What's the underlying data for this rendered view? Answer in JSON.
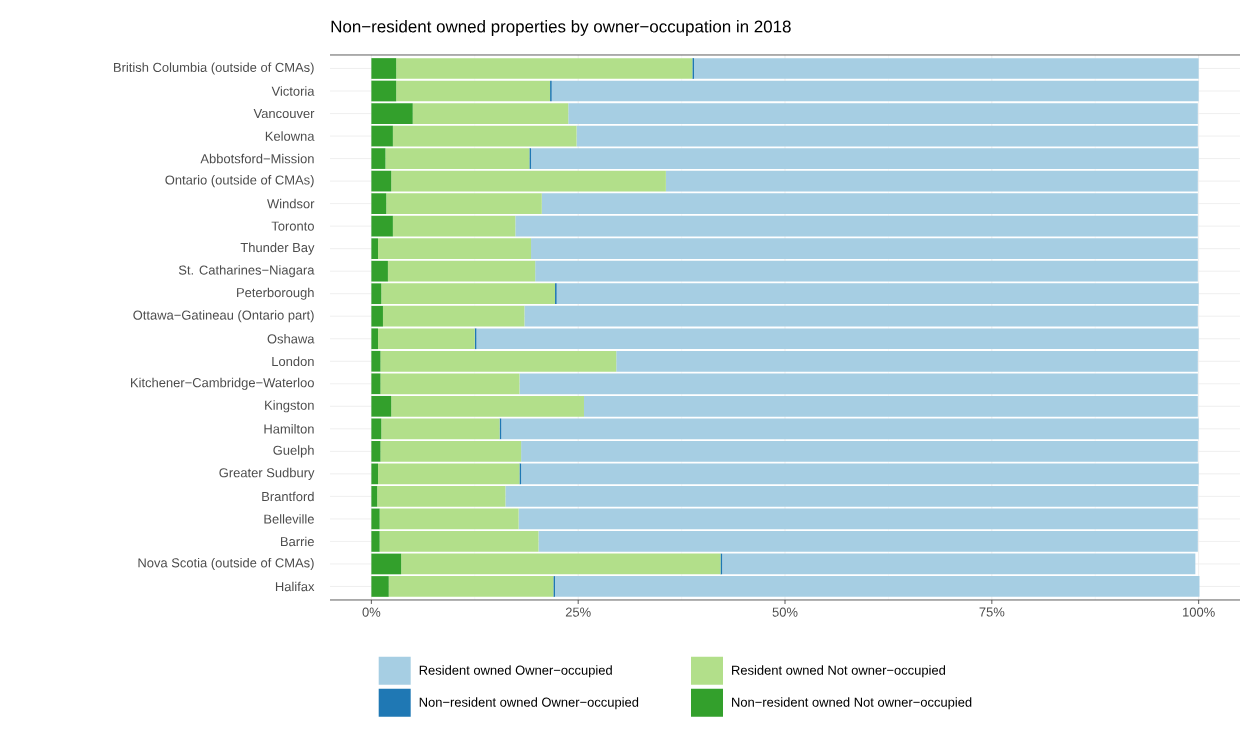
{
  "chart_data": {
    "type": "bar",
    "orientation": "horizontal",
    "stacked": true,
    "title": "Non−resident owned properties by owner−occupation in 2018",
    "categories": [
      "British Columbia (outside of CMAs)",
      "Victoria",
      "Vancouver",
      "Kelowna",
      "Abbotsford−Mission",
      "Ontario (outside of CMAs)",
      "Windsor",
      "Toronto",
      "Thunder Bay",
      "St. Catharines−Niagara",
      "Peterborough",
      "Ottawa−Gatineau (Ontario part)",
      "Oshawa",
      "London",
      "Kitchener−Cambridge−Waterloo",
      "Kingston",
      "Hamilton",
      "Guelph",
      "Greater Sudbury",
      "Brantford",
      "Belleville",
      "Barrie",
      "Nova Scotia (outside of CMAs)",
      "Halifax"
    ],
    "series": [
      {
        "name": "Non−resident owned Not owner−occupied",
        "color": "#33a02c",
        "values": [
          3.0,
          3.0,
          5.0,
          2.6,
          1.7,
          2.4,
          1.8,
          2.6,
          0.8,
          2.0,
          1.2,
          1.4,
          0.8,
          1.1,
          1.1,
          2.4,
          1.2,
          1.1,
          0.8,
          0.7,
          1.0,
          1.0,
          3.6,
          2.1
        ]
      },
      {
        "name": "Resident owned Not owner−occupied",
        "color": "#b2df8a",
        "values": [
          35.8,
          18.6,
          18.8,
          22.2,
          17.4,
          33.2,
          18.8,
          14.8,
          18.5,
          17.8,
          21.0,
          17.1,
          11.7,
          28.5,
          16.8,
          23.3,
          14.3,
          17.0,
          17.1,
          15.5,
          16.8,
          19.2,
          38.6,
          19.9
        ]
      },
      {
        "name": "Non−resident owned Owner−occupied",
        "color": "#1f78b4",
        "values": [
          0.2,
          0.2,
          null,
          null,
          0.2,
          null,
          null,
          null,
          null,
          null,
          0.2,
          null,
          0.2,
          null,
          null,
          null,
          0.2,
          null,
          0.2,
          null,
          null,
          null,
          0.2,
          0.2
        ]
      },
      {
        "name": "Resident owned Owner−occupied",
        "color": "#a6cee3",
        "values": [
          61.0,
          78.2,
          76.1,
          75.1,
          80.7,
          64.3,
          79.3,
          82.5,
          80.6,
          80.1,
          77.6,
          81.4,
          87.3,
          70.3,
          82.0,
          74.2,
          84.3,
          81.8,
          81.9,
          83.7,
          82.1,
          79.7,
          57.2,
          77.9
        ]
      }
    ],
    "xlim": [
      -5,
      105
    ],
    "xticks": [
      {
        "value": 0,
        "label": "0%"
      },
      {
        "value": 25,
        "label": "25%"
      },
      {
        "value": 50,
        "label": "50%"
      },
      {
        "value": 75,
        "label": "75%"
      },
      {
        "value": 100,
        "label": "100%"
      }
    ],
    "grid": true,
    "legend": "bottom"
  }
}
